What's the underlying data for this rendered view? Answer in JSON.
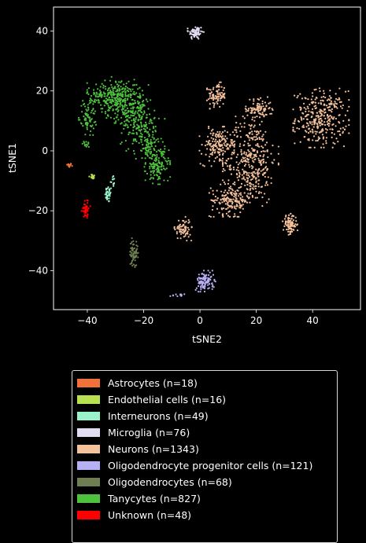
{
  "chart_data": {
    "type": "scatter",
    "title": "",
    "xlabel": "tSNE2",
    "ylabel": "tSNE1",
    "xlim": [
      -52,
      57
    ],
    "ylim": [
      -53,
      48
    ],
    "xticks": [
      -40,
      -20,
      0,
      20,
      40
    ],
    "yticks": [
      -40,
      -20,
      0,
      20,
      40
    ],
    "grid": false,
    "legend_position": "below",
    "series": [
      {
        "name": "Astrocytes (n=18)",
        "color": "#f07238",
        "n": 18,
        "clusters": [
          {
            "cx": -46.5,
            "cy": -4.8,
            "sx": 0.5,
            "sy": 0.35,
            "n": 18
          }
        ]
      },
      {
        "name": "Endothelial cells (n=16)",
        "color": "#b8e04f",
        "n": 16,
        "clusters": [
          {
            "cx": -38.2,
            "cy": -8.8,
            "sx": 0.6,
            "sy": 0.6,
            "n": 16
          }
        ]
      },
      {
        "name": "Interneurons (n=49)",
        "color": "#99f5c9",
        "n": 49,
        "clusters": [
          {
            "cx": -32.5,
            "cy": -14.5,
            "sx": 0.6,
            "sy": 1.4,
            "n": 37
          },
          {
            "cx": -31.0,
            "cy": -10.0,
            "sx": 0.4,
            "sy": 1.0,
            "n": 12
          }
        ]
      },
      {
        "name": "Microglia (n=76)",
        "color": "#e2dcf3",
        "n": 76,
        "clusters": [
          {
            "cx": -1.5,
            "cy": 39.5,
            "sx": 1.3,
            "sy": 1.2,
            "n": 76
          }
        ]
      },
      {
        "name": "Neurons (n=1343)",
        "color": "#f4c19a",
        "n": 1343,
        "clusters": [
          {
            "cx": 6,
            "cy": 18.5,
            "sx": 1.6,
            "sy": 2.0,
            "n": 90
          },
          {
            "cx": 21,
            "cy": 14,
            "sx": 2.2,
            "sy": 1.8,
            "n": 90
          },
          {
            "cx": 43,
            "cy": 11,
            "sx": 4.5,
            "sy": 4.5,
            "n": 320
          },
          {
            "cx": 6,
            "cy": 1.5,
            "sx": 2.8,
            "sy": 3.0,
            "n": 150
          },
          {
            "cx": 18,
            "cy": -3,
            "sx": 4.5,
            "sy": 7.0,
            "n": 360
          },
          {
            "cx": 11,
            "cy": -16.5,
            "sx": 3.5,
            "sy": 2.5,
            "n": 170
          },
          {
            "cx": 32,
            "cy": -24.5,
            "sx": 1.2,
            "sy": 1.6,
            "n": 90
          },
          {
            "cx": -6,
            "cy": -26,
            "sx": 1.4,
            "sy": 1.8,
            "n": 73
          }
        ]
      },
      {
        "name": "Oligodendrocyte progenitor cells (n=121)",
        "color": "#b8b0f4",
        "n": 121,
        "clusters": [
          {
            "cx": 2,
            "cy": -43.5,
            "sx": 1.6,
            "sy": 1.6,
            "n": 110
          },
          {
            "cx": -8.5,
            "cy": -48.3,
            "sx": 1.8,
            "sy": 0.25,
            "n": 11
          }
        ]
      },
      {
        "name": "Oligodendrocytes (n=68)",
        "color": "#6e7e52",
        "n": 68,
        "clusters": [
          {
            "cx": -23.5,
            "cy": -34,
            "sx": 0.7,
            "sy": 2.2,
            "n": 68
          }
        ]
      },
      {
        "name": "Tanycytes (n=827)",
        "color": "#4ec23e",
        "n": 827,
        "clusters": [
          {
            "cx": -40,
            "cy": 11,
            "sx": 1.4,
            "sy": 2.6,
            "n": 70
          },
          {
            "cx": -40.5,
            "cy": 2.2,
            "sx": 0.6,
            "sy": 0.6,
            "n": 12
          },
          {
            "cx": -34,
            "cy": 18,
            "sx": 3.0,
            "sy": 2.5,
            "n": 130
          },
          {
            "cx": -28,
            "cy": 17,
            "sx": 3.0,
            "sy": 3.5,
            "n": 200
          },
          {
            "cx": -22,
            "cy": 11,
            "sx": 2.8,
            "sy": 5.0,
            "n": 200
          },
          {
            "cx": -18,
            "cy": 2,
            "sx": 2.5,
            "sy": 4.0,
            "n": 95
          },
          {
            "cx": -15,
            "cy": -5,
            "sx": 2.0,
            "sy": 2.8,
            "n": 120
          }
        ]
      },
      {
        "name": "Unknown (n=48)",
        "color": "#ff0000",
        "n": 48,
        "clusters": [
          {
            "cx": -40.5,
            "cy": -19.5,
            "sx": 0.7,
            "sy": 1.4,
            "n": 48
          }
        ]
      }
    ]
  }
}
